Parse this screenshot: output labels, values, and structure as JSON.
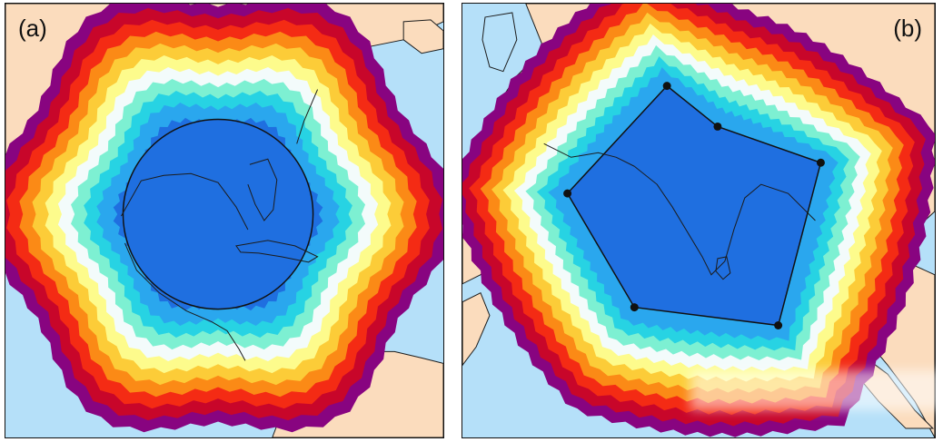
{
  "panels": [
    {
      "label": "(a)",
      "shape": "circle"
    },
    {
      "label": "(b)",
      "shape": "polygon",
      "vertex_count": 6
    }
  ],
  "colors": {
    "ocean": "#b5e0f9",
    "land": "#fbdcbd",
    "coast": "#1c1c1c",
    "interior": "#1f6fe0",
    "outline": "#111111",
    "vertex": "#111111"
  },
  "buffer_bands": [
    "#1f6fe0",
    "#2aa7ee",
    "#27d3e3",
    "#7df0d2",
    "#f3fbfb",
    "#fdfb8c",
    "#fccc38",
    "#fb8a16",
    "#f42b14",
    "#c8062a",
    "#880480"
  ]
}
